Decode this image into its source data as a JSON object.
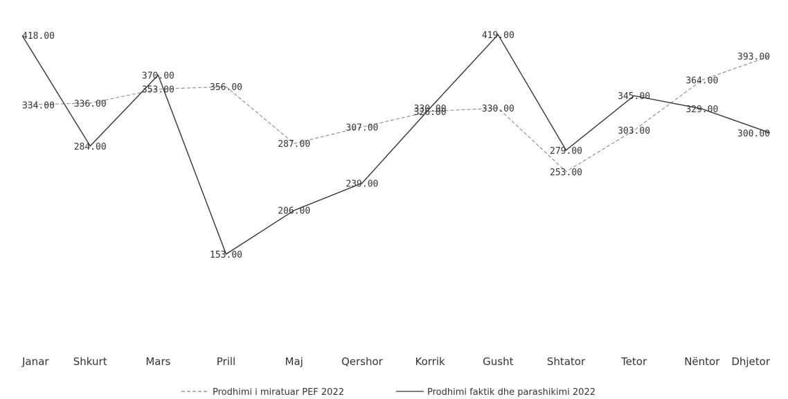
{
  "chart_data": {
    "type": "line",
    "title": "",
    "xlabel": "",
    "ylabel": "",
    "ylim": [
      100,
      440
    ],
    "grid": false,
    "legend_position": "bottom",
    "categories": [
      "Janar",
      "Shkurt",
      "Mars",
      "Prill",
      "Maj",
      "Qershor",
      "Korrik",
      "Gusht",
      "Shtator",
      "Tetor",
      "Nëntor",
      "Dhjetor"
    ],
    "series": [
      {
        "name": "Prodhimi i miratuar PEF 2022",
        "color": "#888888",
        "dash": "dashed",
        "values": [
          334,
          336,
          353,
          356,
          287,
          307,
          326,
          330,
          253,
          303,
          364,
          393
        ],
        "labels": [
          "334.00",
          "336.00",
          "353.00",
          "356.00",
          "287.00",
          "307.00",
          "326.00",
          "330.00",
          "253.00",
          "303.00",
          "364.00",
          "393.00"
        ]
      },
      {
        "name": "Prodhimi faktik dhe parashikimi 2022",
        "color": "#333333",
        "dash": "solid",
        "values": [
          418,
          284,
          370,
          153,
          206,
          239,
          330,
          419,
          279,
          345,
          329,
          300
        ],
        "labels": [
          "418.00",
          "284.00",
          "370.00",
          "153.00",
          "206.00",
          "239.00",
          "330.00",
          "419.00",
          "279.00",
          "345.00",
          "329.00",
          "300.00"
        ]
      }
    ]
  }
}
